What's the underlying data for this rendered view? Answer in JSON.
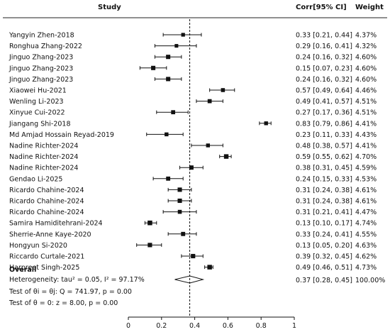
{
  "chart_data": {
    "type": "forest",
    "headers": {
      "study": "Study",
      "ci": "Corr[95% CI]",
      "weight": "Weight"
    },
    "studies": [
      {
        "name": "Yangyin Zhen-2018",
        "corr": 0.33,
        "lo": 0.21,
        "hi": 0.44,
        "ci_text": "0.33 [0.21, 0.44]",
        "weight": "4.37%"
      },
      {
        "name": "Ronghua Zhang-2022",
        "corr": 0.29,
        "lo": 0.16,
        "hi": 0.41,
        "ci_text": "0.29 [0.16, 0.41]",
        "weight": "4.32%"
      },
      {
        "name": "Jinguo Zhang-2023",
        "corr": 0.24,
        "lo": 0.16,
        "hi": 0.32,
        "ci_text": "0.24 [0.16, 0.32]",
        "weight": "4.60%"
      },
      {
        "name": "Jinguo Zhang-2023",
        "corr": 0.15,
        "lo": 0.07,
        "hi": 0.23,
        "ci_text": "0.15 [0.07, 0.23]",
        "weight": "4.60%"
      },
      {
        "name": "Jinguo Zhang-2023",
        "corr": 0.24,
        "lo": 0.16,
        "hi": 0.32,
        "ci_text": "0.24 [0.16, 0.32]",
        "weight": "4.60%"
      },
      {
        "name": "Xiaowei Hu-2021",
        "corr": 0.57,
        "lo": 0.49,
        "hi": 0.64,
        "ci_text": "0.57 [0.49, 0.64]",
        "weight": "4.46%"
      },
      {
        "name": "Wenling Li-2023",
        "corr": 0.49,
        "lo": 0.41,
        "hi": 0.57,
        "ci_text": "0.49 [0.41, 0.57]",
        "weight": "4.51%"
      },
      {
        "name": "Xinyue Cui-2022",
        "corr": 0.27,
        "lo": 0.17,
        "hi": 0.36,
        "ci_text": "0.27 [0.17, 0.36]",
        "weight": "4.51%"
      },
      {
        "name": "Jiangang Shi-2018",
        "corr": 0.83,
        "lo": 0.79,
        "hi": 0.86,
        "ci_text": "0.83 [0.79, 0.86]",
        "weight": "4.41%"
      },
      {
        "name": "Md Amjad Hossain Reyad-2019",
        "corr": 0.23,
        "lo": 0.11,
        "hi": 0.33,
        "ci_text": "0.23 [0.11, 0.33]",
        "weight": "4.43%"
      },
      {
        "name": "Nadine Richter-2024",
        "corr": 0.48,
        "lo": 0.38,
        "hi": 0.57,
        "ci_text": "0.48 [0.38, 0.57]",
        "weight": "4.41%"
      },
      {
        "name": "Nadine Richter-2024",
        "corr": 0.59,
        "lo": 0.55,
        "hi": 0.62,
        "ci_text": "0.59 [0.55, 0.62]",
        "weight": "4.70%"
      },
      {
        "name": "Nadine Richter-2024",
        "corr": 0.38,
        "lo": 0.31,
        "hi": 0.45,
        "ci_text": "0.38 [0.31, 0.45]",
        "weight": "4.59%"
      },
      {
        "name": "Gendao Li-2025",
        "corr": 0.24,
        "lo": 0.15,
        "hi": 0.33,
        "ci_text": "0.24 [0.15, 0.33]",
        "weight": "4.53%"
      },
      {
        "name": "Ricardo Chahine-2024",
        "corr": 0.31,
        "lo": 0.24,
        "hi": 0.38,
        "ci_text": "0.31 [0.24, 0.38]",
        "weight": "4.61%"
      },
      {
        "name": "Ricardo Chahine-2024",
        "corr": 0.31,
        "lo": 0.24,
        "hi": 0.38,
        "ci_text": "0.31 [0.24, 0.38]",
        "weight": "4.61%"
      },
      {
        "name": "Ricardo Chahine-2024",
        "corr": 0.31,
        "lo": 0.21,
        "hi": 0.41,
        "ci_text": "0.31 [0.21, 0.41]",
        "weight": "4.47%"
      },
      {
        "name": "Samira Hamiditehrani-2024",
        "corr": 0.13,
        "lo": 0.1,
        "hi": 0.17,
        "ci_text": "0.13 [0.10, 0.17]",
        "weight": "4.74%"
      },
      {
        "name": "Sherrie-Anne Kaye-2020",
        "corr": 0.33,
        "lo": 0.24,
        "hi": 0.41,
        "ci_text": "0.33 [0.24, 0.41]",
        "weight": "4.55%"
      },
      {
        "name": "Hongyun Si-2020",
        "corr": 0.13,
        "lo": 0.05,
        "hi": 0.2,
        "ci_text": "0.13 [0.05, 0.20]",
        "weight": "4.63%"
      },
      {
        "name": "Riccardo Curtale-2021",
        "corr": 0.39,
        "lo": 0.32,
        "hi": 0.45,
        "ci_text": "0.39 [0.32, 0.45]",
        "weight": "4.62%"
      },
      {
        "name": "Harpreet Singh-2025",
        "corr": 0.49,
        "lo": 0.46,
        "hi": 0.51,
        "ci_text": "0.49 [0.46, 0.51]",
        "weight": "4.73%"
      }
    ],
    "overall": {
      "label": "Overall",
      "corr": 0.37,
      "lo": 0.28,
      "hi": 0.45,
      "ci_text": "0.37 [0.28, 0.45]",
      "weight": "100.00%"
    },
    "stats": [
      "Heterogeneity: tau² = 0.05, I² = 97.17%",
      "Test of θi = θj: Q = 741.97, p = 0.00",
      "Test of θ = 0: z = 8.00, p = 0.00"
    ],
    "x_axis": {
      "range": [
        0,
        1
      ],
      "ticks": [
        0,
        0.2,
        0.4,
        0.6,
        0.8,
        1
      ],
      "tick_labels": [
        "0",
        "0.2",
        "0.4",
        "0.6",
        "0.8",
        "1"
      ]
    },
    "reference_line": 0.37
  }
}
